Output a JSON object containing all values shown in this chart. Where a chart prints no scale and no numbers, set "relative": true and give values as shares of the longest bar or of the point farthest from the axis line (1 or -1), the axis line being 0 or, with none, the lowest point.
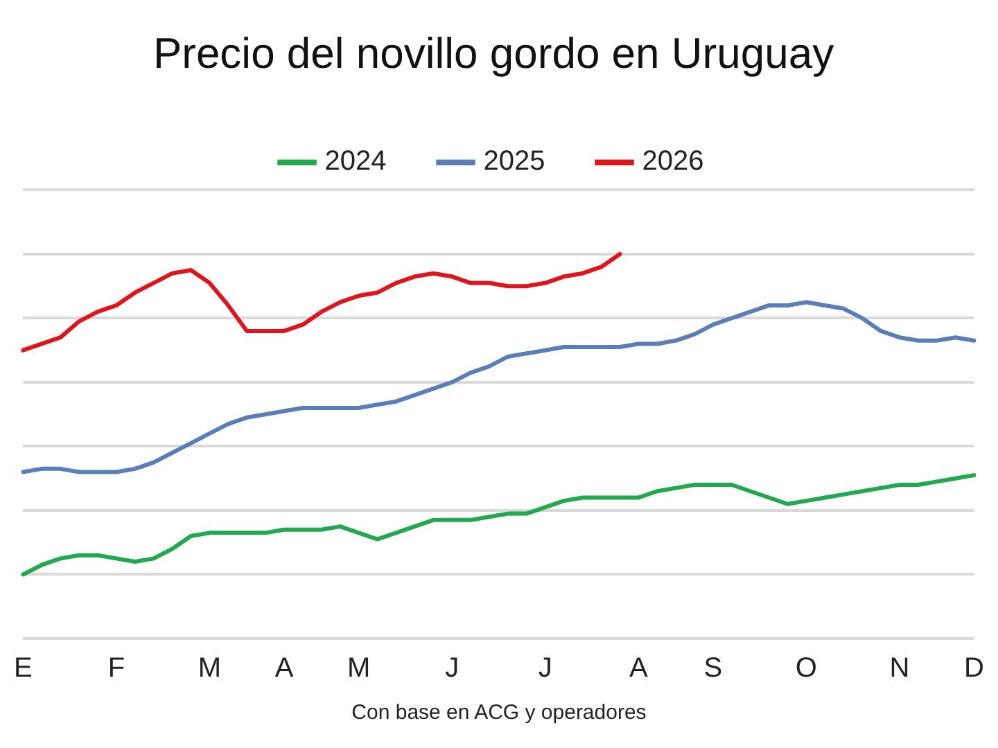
{
  "chart_data": {
    "type": "line",
    "title": "Precio del novillo gordo en Uruguay",
    "relative": true,
    "grid": "y",
    "legend": "top",
    "marker": "none",
    "line_style": "solid",
    "categories": [
      "E",
      null,
      null,
      null,
      null,
      "F",
      null,
      null,
      null,
      null,
      "M",
      null,
      null,
      null,
      "A",
      null,
      null,
      null,
      "M",
      null,
      null,
      null,
      null,
      "J",
      null,
      null,
      null,
      null,
      "J",
      null,
      null,
      null,
      null,
      "A",
      null,
      null,
      null,
      "S",
      null,
      null,
      null,
      null,
      "O",
      null,
      null,
      null,
      null,
      "N",
      null,
      null,
      null,
      "D"
    ],
    "series": [
      {
        "name": "2024",
        "color": "#22a94f",
        "values": [
          0,
          0.03,
          0.05,
          0.06,
          0.06,
          0.05,
          0.04,
          0.05,
          0.08,
          0.12,
          0.13,
          0.13,
          0.13,
          0.13,
          0.14,
          0.14,
          0.14,
          0.15,
          0.13,
          0.11,
          0.13,
          0.15,
          0.17,
          0.17,
          0.17,
          0.18,
          0.19,
          0.19,
          0.21,
          0.23,
          0.24,
          0.24,
          0.24,
          0.24,
          0.26,
          0.27,
          0.28,
          0.28,
          0.28,
          0.26,
          0.24,
          0.22,
          0.23,
          0.24,
          0.25,
          0.26,
          0.27,
          0.28,
          0.28,
          0.29,
          0.3,
          0.31
        ]
      },
      {
        "name": "2025",
        "color": "#5a7fb8",
        "values": [
          0.32,
          0.33,
          0.33,
          0.32,
          0.32,
          0.32,
          0.33,
          0.35,
          0.38,
          0.41,
          0.44,
          0.47,
          0.49,
          0.5,
          0.51,
          0.52,
          0.52,
          0.52,
          0.52,
          0.53,
          0.54,
          0.56,
          0.58,
          0.6,
          0.63,
          0.65,
          0.68,
          0.69,
          0.7,
          0.71,
          0.71,
          0.71,
          0.71,
          0.72,
          0.72,
          0.73,
          0.75,
          0.78,
          0.8,
          0.82,
          0.84,
          0.84,
          0.85,
          0.84,
          0.83,
          0.8,
          0.76,
          0.74,
          0.73,
          0.73,
          0.74,
          0.73
        ]
      },
      {
        "name": "2026",
        "color": "#e0151b",
        "values": [
          0.7,
          0.72,
          0.74,
          0.79,
          0.82,
          0.84,
          0.88,
          0.91,
          0.94,
          0.95,
          0.91,
          0.84,
          0.76,
          0.76,
          0.76,
          0.78,
          0.82,
          0.85,
          0.87,
          0.88,
          0.91,
          0.93,
          0.94,
          0.93,
          0.91,
          0.91,
          0.9,
          0.9,
          0.91,
          0.93,
          0.94,
          0.96,
          1,
          null,
          null,
          null,
          null,
          null,
          null,
          null,
          null,
          null,
          null,
          null,
          null,
          null,
          null,
          null,
          null,
          null,
          null,
          null
        ]
      }
    ],
    "annotations": [
      "Con base en ACG y operadores"
    ]
  }
}
